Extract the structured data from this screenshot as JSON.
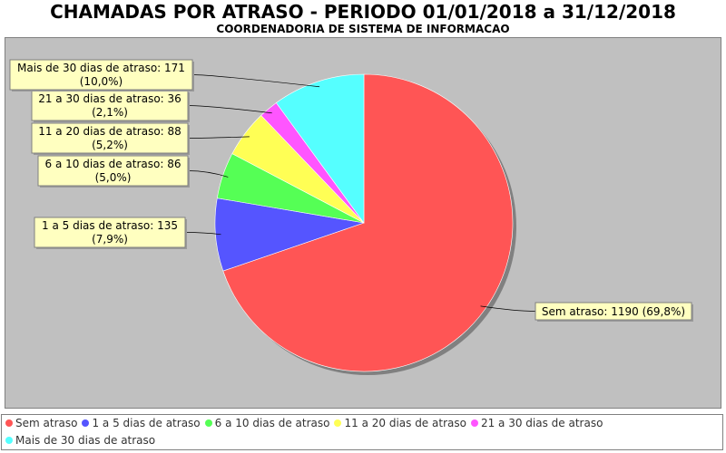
{
  "chart_data": {
    "type": "pie",
    "title": "CHAMADAS POR ATRASO - PERIODO 01/01/2018 a 31/12/2018",
    "subtitle": "COORDENADORIA DE SISTEMA DE INFORMACAO",
    "slices": [
      {
        "name": "Sem atraso",
        "value": 1190,
        "percent": "69,8%",
        "label": "Sem atraso: 1190 (69,8%)",
        "color": "#ff5555"
      },
      {
        "name": "1 a 5 dias de atraso",
        "value": 135,
        "percent": "7,9%",
        "label": "1 a 5 dias de atraso: 135",
        "label2": "(7,9%)",
        "color": "#5555ff"
      },
      {
        "name": "6 a 10 dias de atraso",
        "value": 86,
        "percent": "5,0%",
        "label": "6 a 10 dias de atraso: 86",
        "label2": "(5,0%)",
        "color": "#55ff55"
      },
      {
        "name": "11 a 20 dias de atraso",
        "value": 88,
        "percent": "5,2%",
        "label": "11 a 20 dias de atraso: 88",
        "label2": "(5,2%)",
        "color": "#ffff55"
      },
      {
        "name": "21 a 30 dias de atraso",
        "value": 36,
        "percent": "2,1%",
        "label": "21 a 30 dias de atraso: 36",
        "label2": "(2,1%)",
        "color": "#ff55ff"
      },
      {
        "name": "Mais de 30 dias de atraso",
        "value": 171,
        "percent": "10,0%",
        "label": "Mais de 30 dias de atraso: 171",
        "label2": "(10,0%)",
        "color": "#55ffff"
      }
    ],
    "legend_position": "bottom",
    "plot_background": "#c0c0c0"
  }
}
